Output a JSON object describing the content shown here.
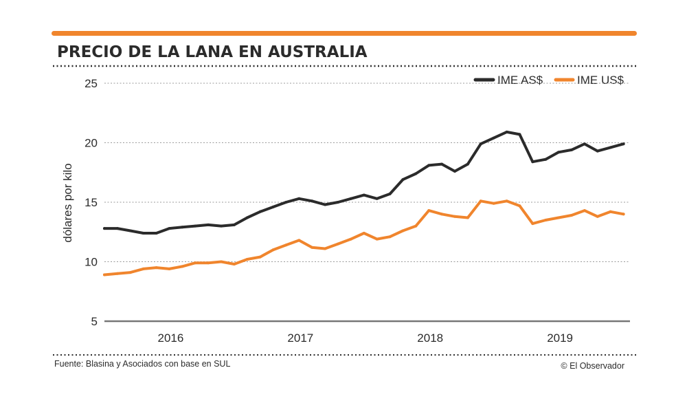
{
  "colors": {
    "accent": "#f0852d",
    "dark_series": "#2b2b2b",
    "orange_series": "#f0852d",
    "grid": "#9a9a9a",
    "axis": "#777777"
  },
  "footer": {
    "source": "Fuente: Blasina y Asociados con base en SUL",
    "credit": "© El Observador"
  },
  "chart_data": {
    "type": "line",
    "title": "PRECIO DE LA LANA EN AUSTRALIA",
    "xlabel": "",
    "ylabel": "dólares por kilo",
    "ylim": [
      5,
      25
    ],
    "yticks": [
      5,
      10,
      15,
      20,
      25
    ],
    "xlim": [
      2015.5,
      2019.55
    ],
    "xticks": [
      {
        "value": 2016,
        "label": "2016"
      },
      {
        "value": 2017,
        "label": "2017"
      },
      {
        "value": 2018,
        "label": "2018"
      },
      {
        "value": 2019,
        "label": "2019"
      }
    ],
    "grid": true,
    "legend_position": "top-right",
    "series": [
      {
        "name": "IME AS$",
        "color": "#2b2b2b",
        "x": [
          2015.5,
          2015.6,
          2015.7,
          2015.8,
          2015.9,
          2016.0,
          2016.1,
          2016.2,
          2016.3,
          2016.4,
          2016.5,
          2016.6,
          2016.7,
          2016.8,
          2016.9,
          2017.0,
          2017.1,
          2017.2,
          2017.3,
          2017.4,
          2017.5,
          2017.6,
          2017.7,
          2017.8,
          2017.9,
          2018.0,
          2018.1,
          2018.2,
          2018.3,
          2018.4,
          2018.5,
          2018.6,
          2018.7,
          2018.8,
          2018.9,
          2019.0,
          2019.1,
          2019.2,
          2019.3,
          2019.4,
          2019.5
        ],
        "values": [
          12.8,
          12.8,
          12.6,
          12.4,
          12.4,
          12.8,
          12.9,
          13.0,
          13.1,
          13.0,
          13.1,
          13.7,
          14.2,
          14.6,
          15.0,
          15.3,
          15.1,
          14.8,
          15.0,
          15.3,
          15.6,
          15.3,
          15.7,
          16.9,
          17.4,
          18.1,
          18.2,
          17.6,
          18.2,
          19.9,
          20.4,
          20.9,
          20.7,
          18.4,
          18.6,
          19.2,
          19.4,
          19.9,
          19.3,
          19.6,
          19.9
        ]
      },
      {
        "name": "IME US$",
        "color": "#f0852d",
        "x": [
          2015.5,
          2015.6,
          2015.7,
          2015.8,
          2015.9,
          2016.0,
          2016.1,
          2016.2,
          2016.3,
          2016.4,
          2016.5,
          2016.6,
          2016.7,
          2016.8,
          2016.9,
          2017.0,
          2017.1,
          2017.2,
          2017.3,
          2017.4,
          2017.5,
          2017.6,
          2017.7,
          2017.8,
          2017.9,
          2018.0,
          2018.1,
          2018.2,
          2018.3,
          2018.4,
          2018.5,
          2018.6,
          2018.7,
          2018.8,
          2018.9,
          2019.0,
          2019.1,
          2019.2,
          2019.3,
          2019.4,
          2019.5
        ],
        "values": [
          8.9,
          9.0,
          9.1,
          9.4,
          9.5,
          9.4,
          9.6,
          9.9,
          9.9,
          10.0,
          9.8,
          10.2,
          10.4,
          11.0,
          11.4,
          11.8,
          11.2,
          11.1,
          11.5,
          11.9,
          12.4,
          11.9,
          12.1,
          12.6,
          13.0,
          14.3,
          14.0,
          13.8,
          13.7,
          15.1,
          14.9,
          15.1,
          14.7,
          13.2,
          13.5,
          13.7,
          13.9,
          14.3,
          13.8,
          14.2,
          14.0
        ]
      }
    ]
  }
}
